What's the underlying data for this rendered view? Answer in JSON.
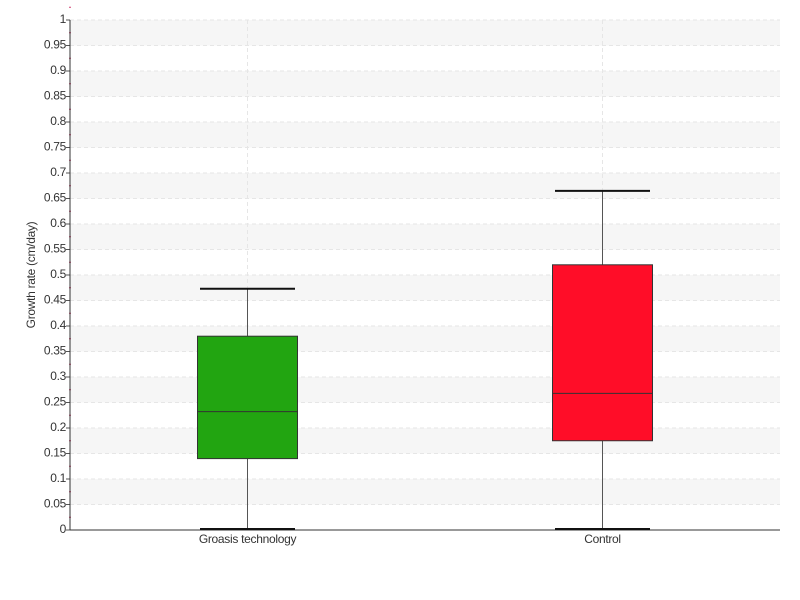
{
  "chart_data": {
    "type": "box",
    "y_label": "Growth rate (cm/day)",
    "categories": [
      "Groasis technology",
      "Control"
    ],
    "boxes": [
      {
        "min": 0,
        "q1": 0.14,
        "median": 0.232,
        "q3": 0.38,
        "max": 0.473,
        "color": "#22a511"
      },
      {
        "min": 0,
        "q1": 0.175,
        "median": 0.268,
        "q3": 0.52,
        "max": 0.665,
        "color": "#ff0d28"
      }
    ],
    "ylim": [
      0,
      1
    ],
    "yticks": [
      0,
      0.05,
      0.1,
      0.15,
      0.2,
      0.25,
      0.3,
      0.35,
      0.4,
      0.45,
      0.5,
      0.55,
      0.6,
      0.65,
      0.7,
      0.75,
      0.8,
      0.85,
      0.9,
      0.95,
      1
    ],
    "grid": true
  }
}
